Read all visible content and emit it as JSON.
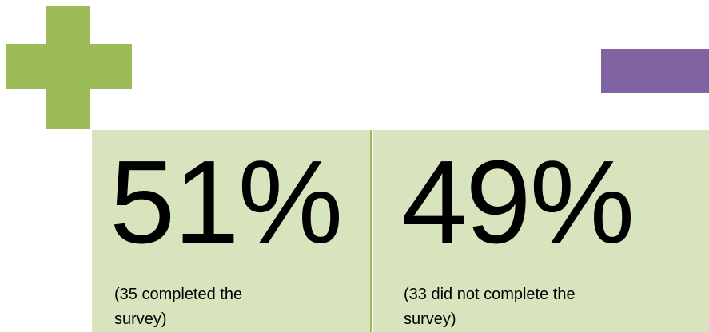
{
  "panels": [
    {
      "percent": "51%",
      "caption": "(35 completed the survey)"
    },
    {
      "percent": "49%",
      "caption": "(33 did not complete the survey)"
    }
  ]
}
